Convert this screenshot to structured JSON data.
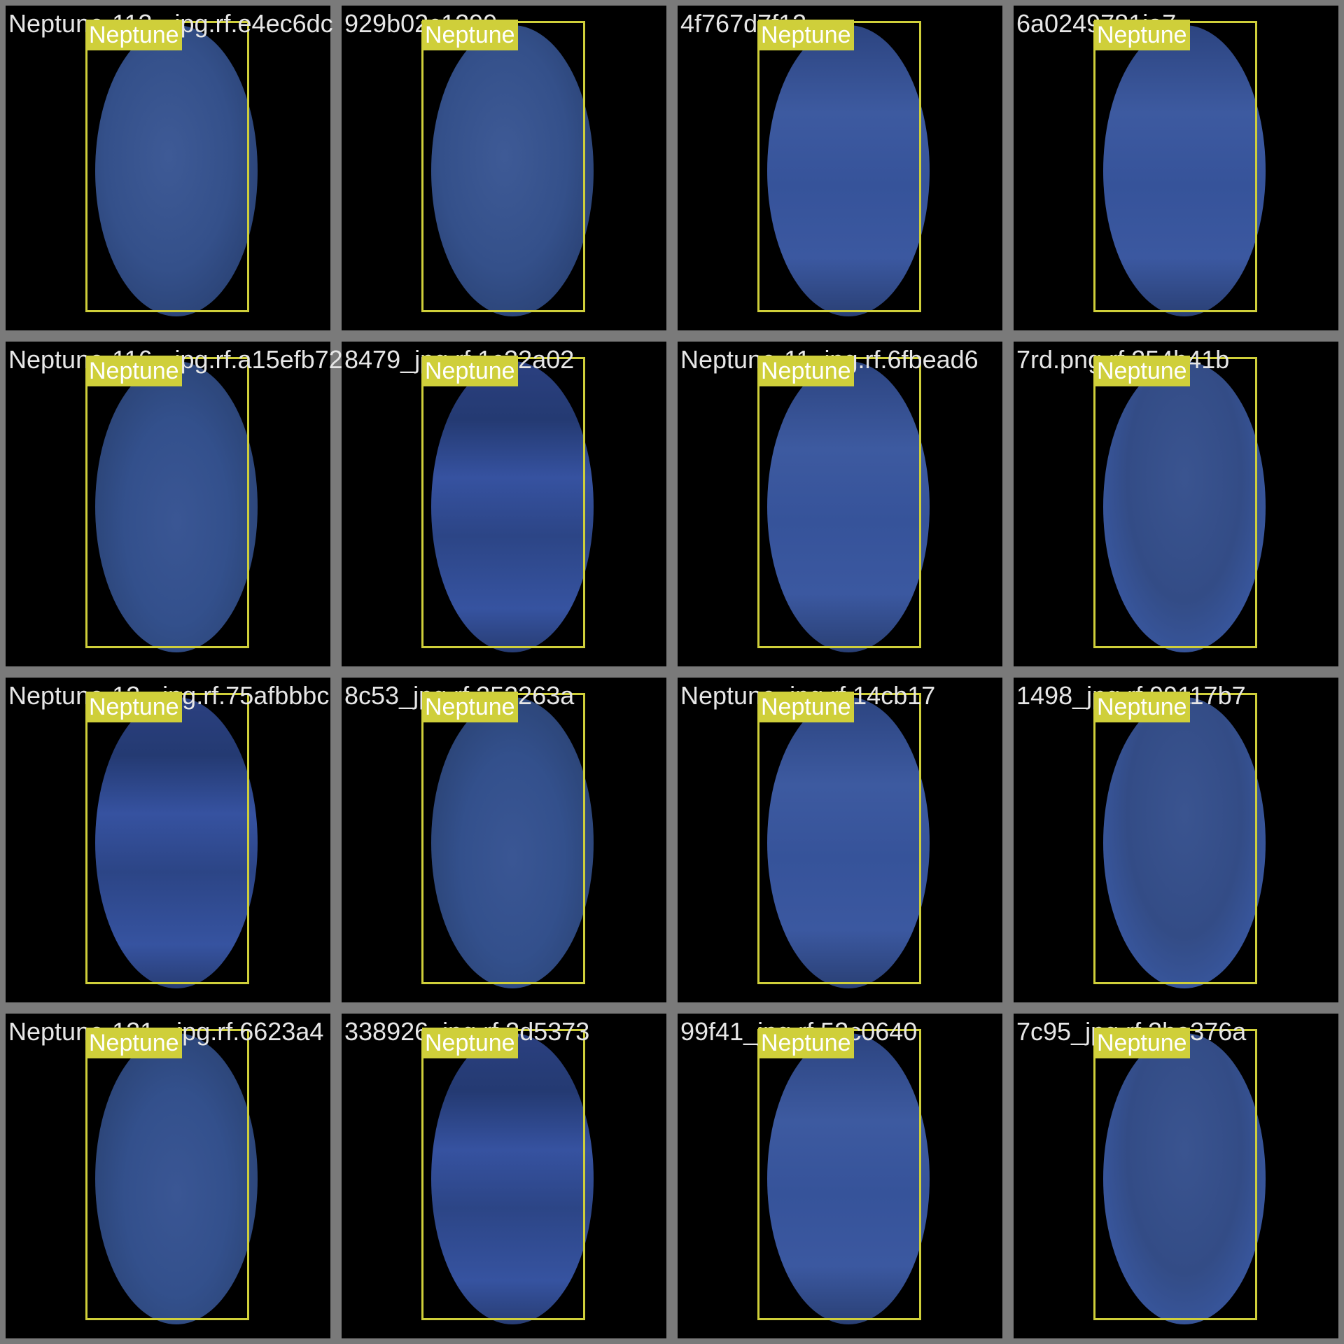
{
  "class_label": "Neptune",
  "colors": {
    "background": "#000000",
    "frame": "#7a7a7a",
    "box": "#cfcf3a",
    "label_text": "#ffffff",
    "filename_text": "#e6e6e6"
  },
  "tiles": [
    {
      "filename": "Neptune-113-_jpg.rf.e4ec6dc",
      "style": "a"
    },
    {
      "filename": "929b02c1299",
      "style": "a"
    },
    {
      "filename": "4f767d7f13",
      "style": "b"
    },
    {
      "filename": "6a0249781ia7",
      "style": "b"
    },
    {
      "filename": "Neptune-116-_jpg.rf.a15efb72",
      "style": "c"
    },
    {
      "filename": "8479_jpg.rf.1c32a02",
      "style": "d"
    },
    {
      "filename": "Neptune-11_jpg.rf.6fbead6",
      "style": "b"
    },
    {
      "filename": "7rd.png.rf.254b41b",
      "style": "e"
    },
    {
      "filename": "Neptune-12-_jpg.rf.75afbbbc",
      "style": "d"
    },
    {
      "filename": "8c53_jpg.rf.352263a",
      "style": "c"
    },
    {
      "filename": "Neptune_jpg.rf.14cb17",
      "style": "b"
    },
    {
      "filename": "1498_jpg.rf.99117b7",
      "style": "e"
    },
    {
      "filename": "Neptune-121-_jpg.rf.6623a4",
      "style": "c"
    },
    {
      "filename": "338926_jpg.rf.3d5373",
      "style": "d"
    },
    {
      "filename": "99f41_jpg.rf.52c0640",
      "style": "b"
    },
    {
      "filename": "7c95_jpg.rf.3be376a",
      "style": "e"
    }
  ]
}
